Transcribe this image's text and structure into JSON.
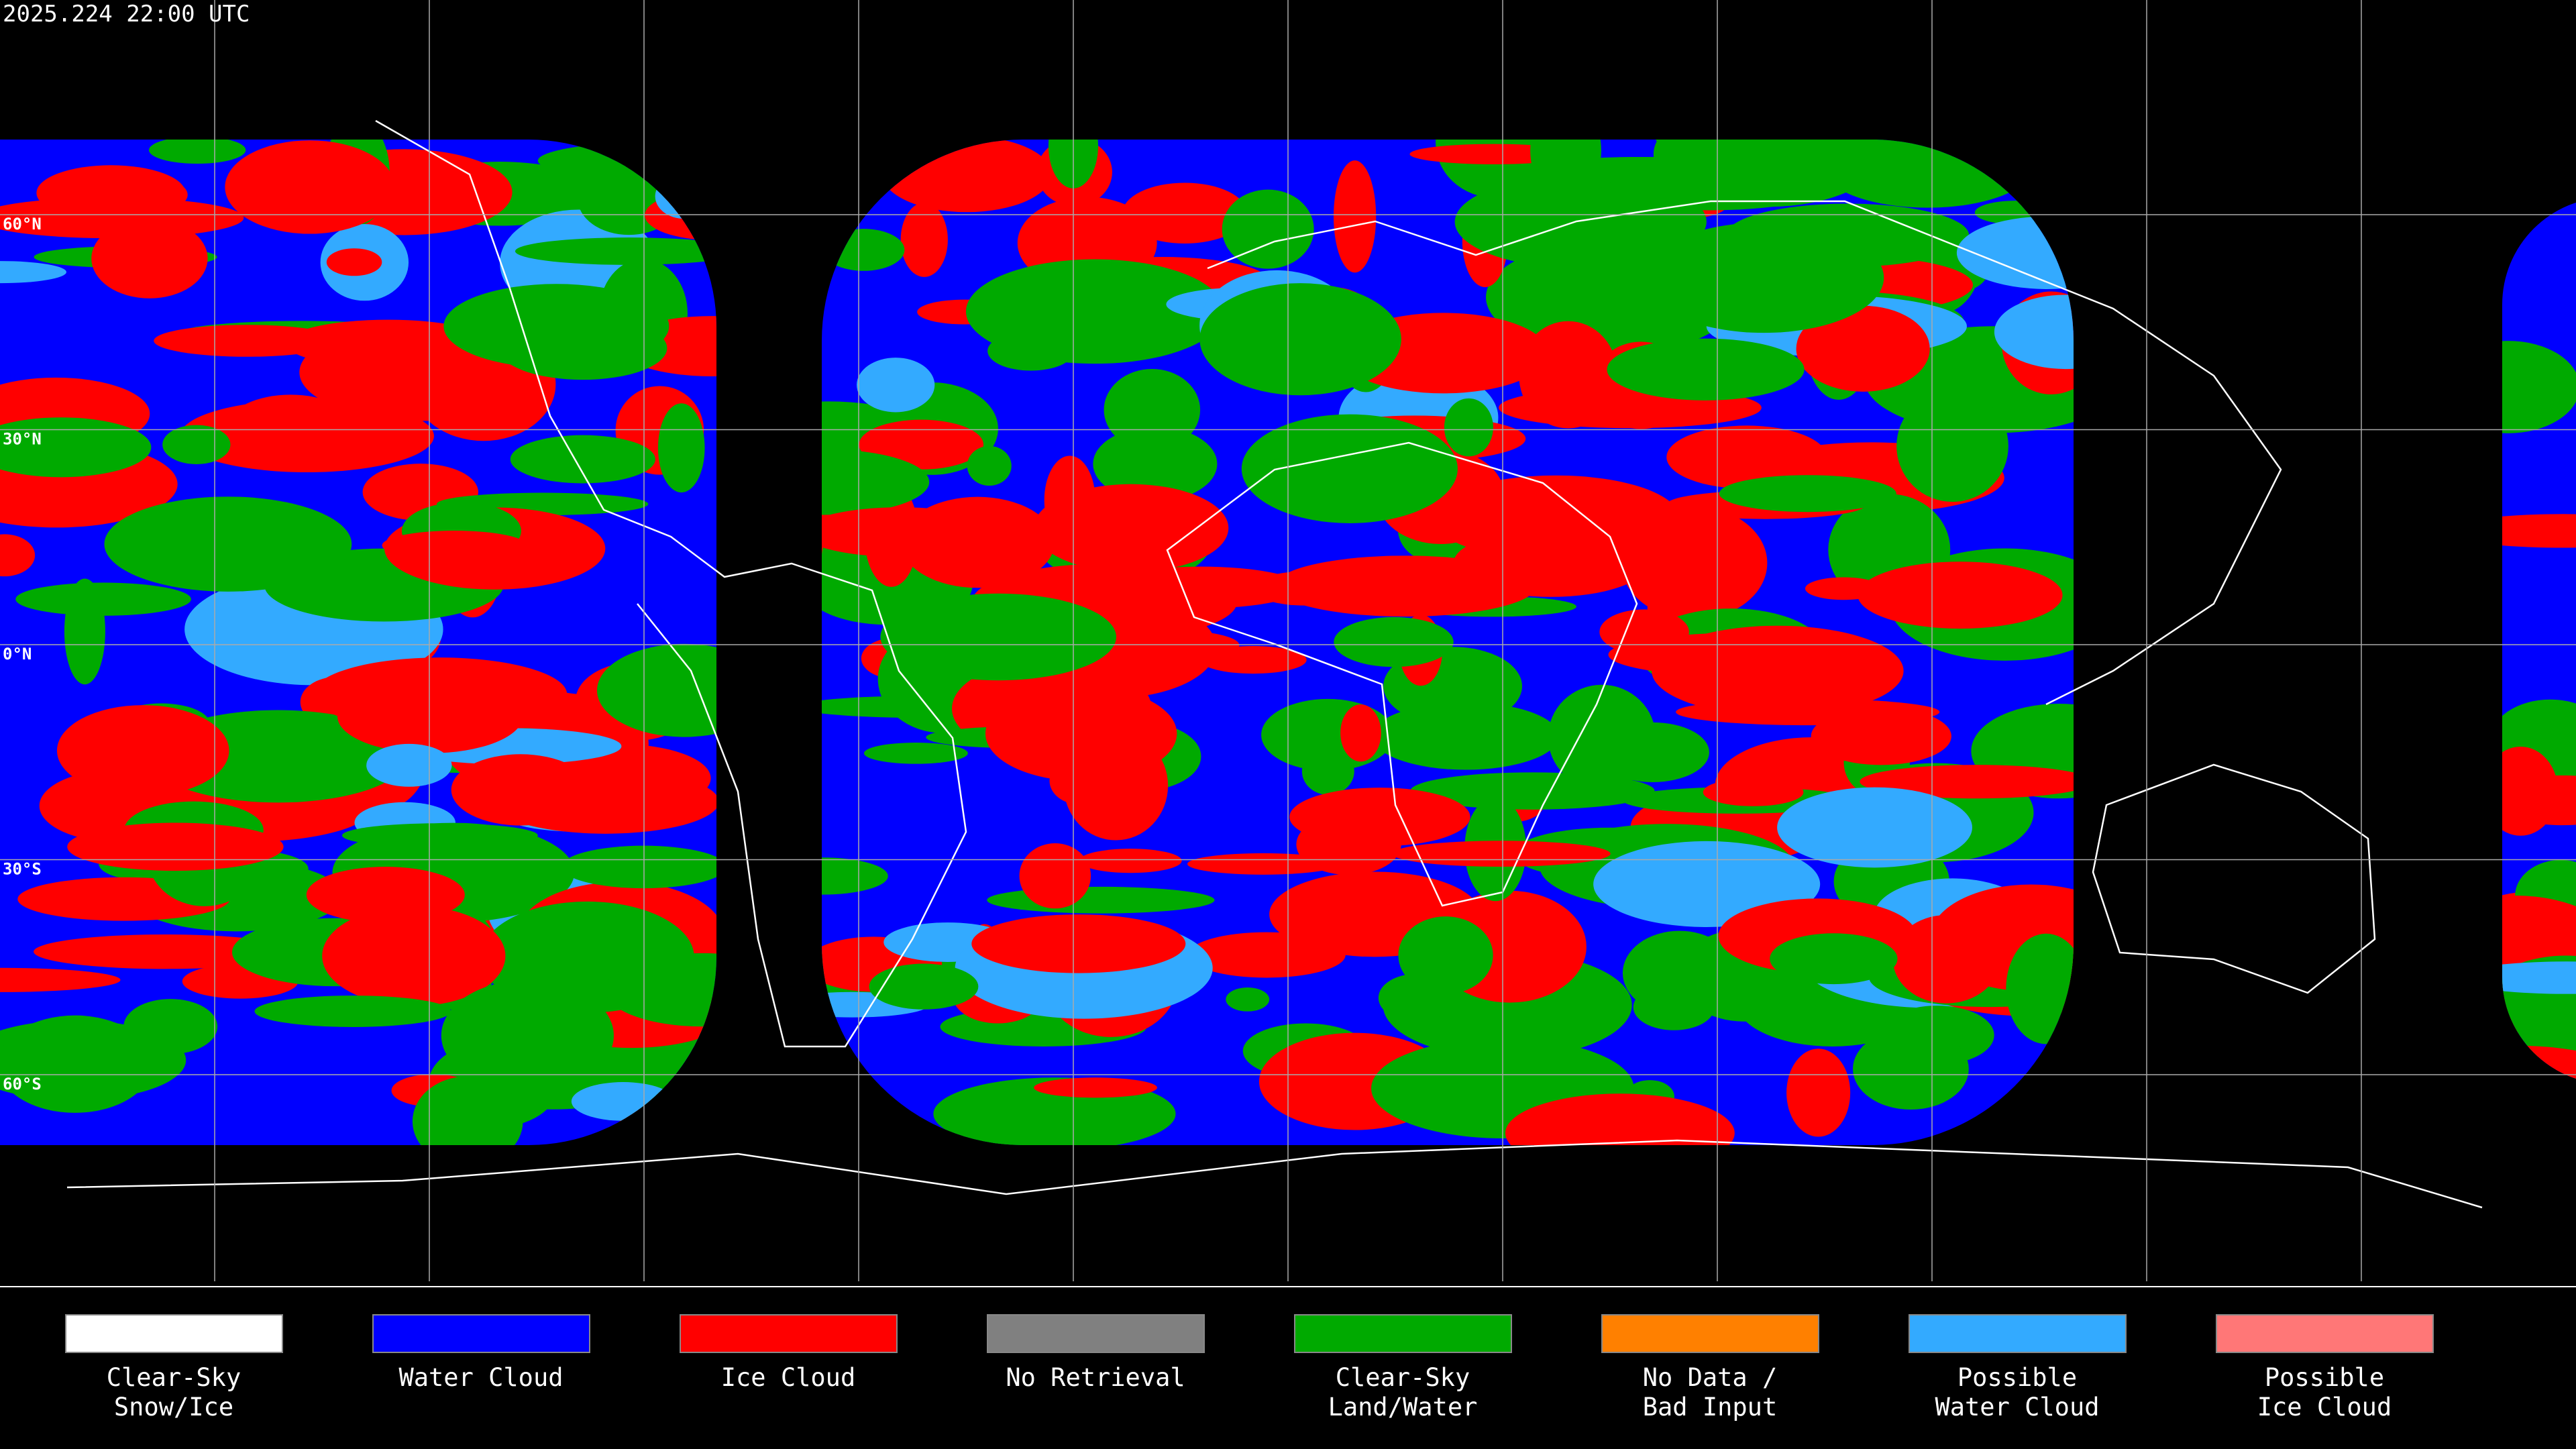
{
  "header": {
    "timestamp": "2025.224 22:00 UTC"
  },
  "map": {
    "lat_labels": [
      "60°N",
      "30°N",
      "0°N",
      "30°S",
      "60°S"
    ]
  },
  "legend": {
    "items": [
      {
        "lines": [
          "Clear-Sky",
          "Snow/Ice"
        ],
        "color": "#ffffff"
      },
      {
        "lines": [
          "Water Cloud"
        ],
        "color": "#0000ff"
      },
      {
        "lines": [
          "Ice Cloud"
        ],
        "color": "#ff0000"
      },
      {
        "lines": [
          "No Retrieval"
        ],
        "color": "#808080"
      },
      {
        "lines": [
          "Clear-Sky",
          "Land/Water"
        ],
        "color": "#00aa00"
      },
      {
        "lines": [
          "No Data /",
          "Bad Input"
        ],
        "color": "#ff8000"
      },
      {
        "lines": [
          "Possible",
          "Water Cloud"
        ],
        "color": "#33aaff"
      },
      {
        "lines": [
          "Possible",
          "Ice Cloud"
        ],
        "color": "#ff7777"
      }
    ]
  }
}
